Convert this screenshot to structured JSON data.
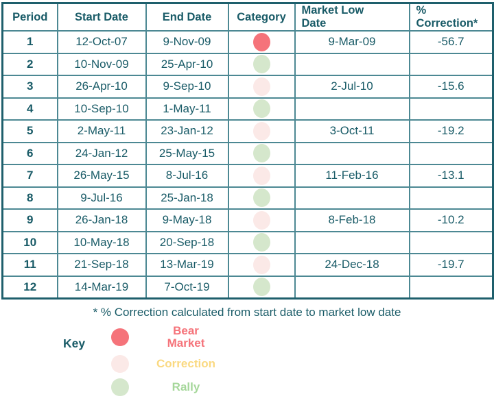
{
  "chart_data": {
    "type": "table",
    "columns": [
      "Period",
      "Start Date",
      "End Date",
      "Category",
      "Market Low\nDate",
      "%\nCorrection*"
    ],
    "rows": [
      {
        "period": "1",
        "start_date": "12-Oct-07",
        "end_date": "9-Nov-09",
        "category": "bear-market",
        "market_low_date": "9-Mar-09",
        "pct_correction": "-56.7"
      },
      {
        "period": "2",
        "start_date": "10-Nov-09",
        "end_date": "25-Apr-10",
        "category": "rally",
        "market_low_date": "",
        "pct_correction": ""
      },
      {
        "period": "3",
        "start_date": "26-Apr-10",
        "end_date": "9-Sep-10",
        "category": "correction",
        "market_low_date": "2-Jul-10",
        "pct_correction": "-15.6"
      },
      {
        "period": "4",
        "start_date": "10-Sep-10",
        "end_date": "1-May-11",
        "category": "rally",
        "market_low_date": "",
        "pct_correction": ""
      },
      {
        "period": "5",
        "start_date": "2-May-11",
        "end_date": "23-Jan-12",
        "category": "correction",
        "market_low_date": "3-Oct-11",
        "pct_correction": "-19.2"
      },
      {
        "period": "6",
        "start_date": "24-Jan-12",
        "end_date": "25-May-15",
        "category": "rally",
        "market_low_date": "",
        "pct_correction": ""
      },
      {
        "period": "7",
        "start_date": "26-May-15",
        "end_date": "8-Jul-16",
        "category": "correction",
        "market_low_date": "11-Feb-16",
        "pct_correction": "-13.1"
      },
      {
        "period": "8",
        "start_date": "9-Jul-16",
        "end_date": "25-Jan-18",
        "category": "rally",
        "market_low_date": "",
        "pct_correction": ""
      },
      {
        "period": "9",
        "start_date": "26-Jan-18",
        "end_date": "9-May-18",
        "category": "correction",
        "market_low_date": "8-Feb-18",
        "pct_correction": "-10.2"
      },
      {
        "period": "10",
        "start_date": "10-May-18",
        "end_date": "20-Sep-18",
        "category": "rally",
        "market_low_date": "",
        "pct_correction": ""
      },
      {
        "period": "11",
        "start_date": "21-Sep-18",
        "end_date": "13-Mar-19",
        "category": "correction",
        "market_low_date": "24-Dec-18",
        "pct_correction": "-19.7"
      },
      {
        "period": "12",
        "start_date": "14-Mar-19",
        "end_date": "7-Oct-19",
        "category": "rally",
        "market_low_date": "",
        "pct_correction": ""
      }
    ],
    "footnote": "* % Correction calculated from start date to market low date",
    "legend_position": "bottom-left"
  },
  "key": {
    "title": "Key",
    "categories": {
      "bear-market": {
        "dot_color": "#f5737a"
      },
      "correction": {
        "dot_color": "#fbe9e7"
      },
      "rally": {
        "dot_color": "#d5e7cc"
      }
    },
    "items": [
      {
        "id": "bear-market",
        "name": "Bear Market",
        "label_lines": [
          "Bear",
          "Market"
        ],
        "label_color": "#f5737a"
      },
      {
        "id": "correction",
        "name": "Correction",
        "label_lines": [
          "Correction"
        ],
        "label_color": "#fad981"
      },
      {
        "id": "rally",
        "name": "Rally",
        "label_lines": [
          "Rally"
        ],
        "label_color": "#a5d79a"
      }
    ]
  },
  "colors": {
    "text": "#195b67",
    "border_inner": "#4c8893",
    "border_outer": "#1e5f6c",
    "background": "#ffffff"
  }
}
